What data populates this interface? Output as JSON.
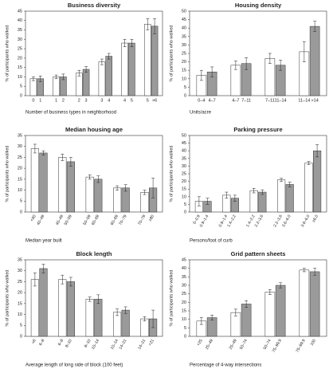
{
  "chart_data": [
    {
      "type": "bar",
      "title": "Business diversity",
      "ylabel": "% of participants who walked",
      "xlabel": "Number of business types in neighborhood",
      "categories": [
        "0",
        "1",
        "1",
        "2",
        "2",
        "3",
        "3",
        "4",
        "4",
        "5",
        "5",
        ">6"
      ],
      "values": [
        9,
        9,
        10,
        10,
        12,
        14,
        18,
        21,
        28,
        28,
        38,
        37
      ],
      "errors": [
        1,
        1.5,
        1,
        1.5,
        1.5,
        1.5,
        1.5,
        1.5,
        2,
        2,
        3,
        4
      ],
      "colors": [
        "#ffffff",
        "#9a9a9a"
      ],
      "ylim": [
        0,
        45
      ],
      "yticks": [
        0,
        5,
        10,
        15,
        20,
        25,
        30,
        35,
        40,
        45
      ],
      "grid": false
    },
    {
      "type": "bar",
      "title": "Housing density",
      "ylabel": "% of participants who walked",
      "xlabel": "Units/acre",
      "categories": [
        "0–4",
        "4–7",
        "4–7",
        "7–11",
        "7–11",
        "11–14",
        "11–14",
        ">14"
      ],
      "values": [
        12,
        14,
        18,
        19,
        22,
        18,
        26,
        41
      ],
      "errors": [
        3,
        3,
        2.5,
        3.5,
        3,
        3,
        6,
        3
      ],
      "colors": [
        "#ffffff",
        "#9a9a9a"
      ],
      "ylim": [
        0,
        50
      ],
      "yticks": [
        0,
        5,
        10,
        15,
        20,
        25,
        30,
        35,
        40,
        45,
        50
      ],
      "grid": false
    },
    {
      "type": "bar",
      "title": "Median housing age",
      "ylabel": "% of participants who walked",
      "xlabel": "Median year built",
      "categories": [
        "<40",
        "40–49",
        "40–49",
        "50–59",
        "50–59",
        "60–69",
        "60–69",
        "70–79",
        "70–79",
        "≥80"
      ],
      "values": [
        29,
        27,
        25,
        23,
        16,
        15,
        11,
        11,
        9,
        11
      ],
      "errors": [
        2,
        1,
        1.5,
        2,
        1,
        1.5,
        1,
        1.5,
        1,
        4.5
      ],
      "colors": [
        "#ffffff",
        "#9a9a9a"
      ],
      "ylim": [
        0,
        35
      ],
      "yticks": [
        0,
        5,
        10,
        15,
        20,
        25,
        30,
        35
      ],
      "grid": false
    },
    {
      "type": "bar",
      "title": "Parking pressure",
      "ylabel": "% of participants who walked",
      "xlabel": "Persons/foot of curb",
      "categories": [
        "0–0.9",
        "0.9–1.4",
        "0.9–1.4",
        "1.4–2.2",
        "1.4–2.2",
        "2.2–3.6",
        "2.2–3.6",
        "3.6–6.0",
        "3.6–6.0",
        "≥6.0"
      ],
      "values": [
        7,
        7,
        11,
        9,
        14,
        13,
        21,
        18,
        32,
        40
      ],
      "errors": [
        3,
        2,
        2,
        2,
        1.5,
        1.5,
        1,
        1.5,
        1,
        4
      ],
      "colors": [
        "#ffffff",
        "#9a9a9a"
      ],
      "ylim": [
        0,
        50
      ],
      "yticks": [
        0,
        5,
        10,
        15,
        20,
        25,
        30,
        35,
        40,
        45,
        50
      ],
      "grid": false
    },
    {
      "type": "bar",
      "title": "Block length",
      "ylabel": "% of participants who walked",
      "xlabel": "Average length of long side of block (100 feet)",
      "categories": [
        "<6",
        "6–8",
        "6–8",
        "8–10",
        "8–10",
        "10–14",
        "10–14",
        "14–21",
        "14–21",
        ">21"
      ],
      "values": [
        26,
        31,
        26,
        25,
        17,
        17,
        11,
        12,
        8,
        8
      ],
      "errors": [
        3,
        2,
        2,
        2,
        1,
        2,
        1.5,
        1.5,
        1,
        4
      ],
      "colors": [
        "#ffffff",
        "#9a9a9a"
      ],
      "ylim": [
        0,
        35
      ],
      "yticks": [
        0,
        5,
        10,
        15,
        20,
        25,
        30,
        35
      ],
      "grid": false
    },
    {
      "type": "bar",
      "title": "Grid pattern sheets",
      "ylabel": "% of participants who walked",
      "xlabel": "Percentage of 4-way intersections",
      "categories": [
        "<25",
        "25–49",
        "25–49",
        "50–74",
        "50–74",
        "75–99.9",
        "75–99.9",
        "100"
      ],
      "values": [
        9,
        11,
        14,
        19,
        26,
        30,
        39,
        38
      ],
      "errors": [
        2,
        1.5,
        2,
        2,
        1.5,
        1.5,
        1,
        2
      ],
      "colors": [
        "#ffffff",
        "#9a9a9a"
      ],
      "ylim": [
        0,
        45
      ],
      "yticks": [
        0,
        5,
        10,
        15,
        20,
        25,
        30,
        35,
        40,
        45
      ],
      "grid": false
    }
  ]
}
